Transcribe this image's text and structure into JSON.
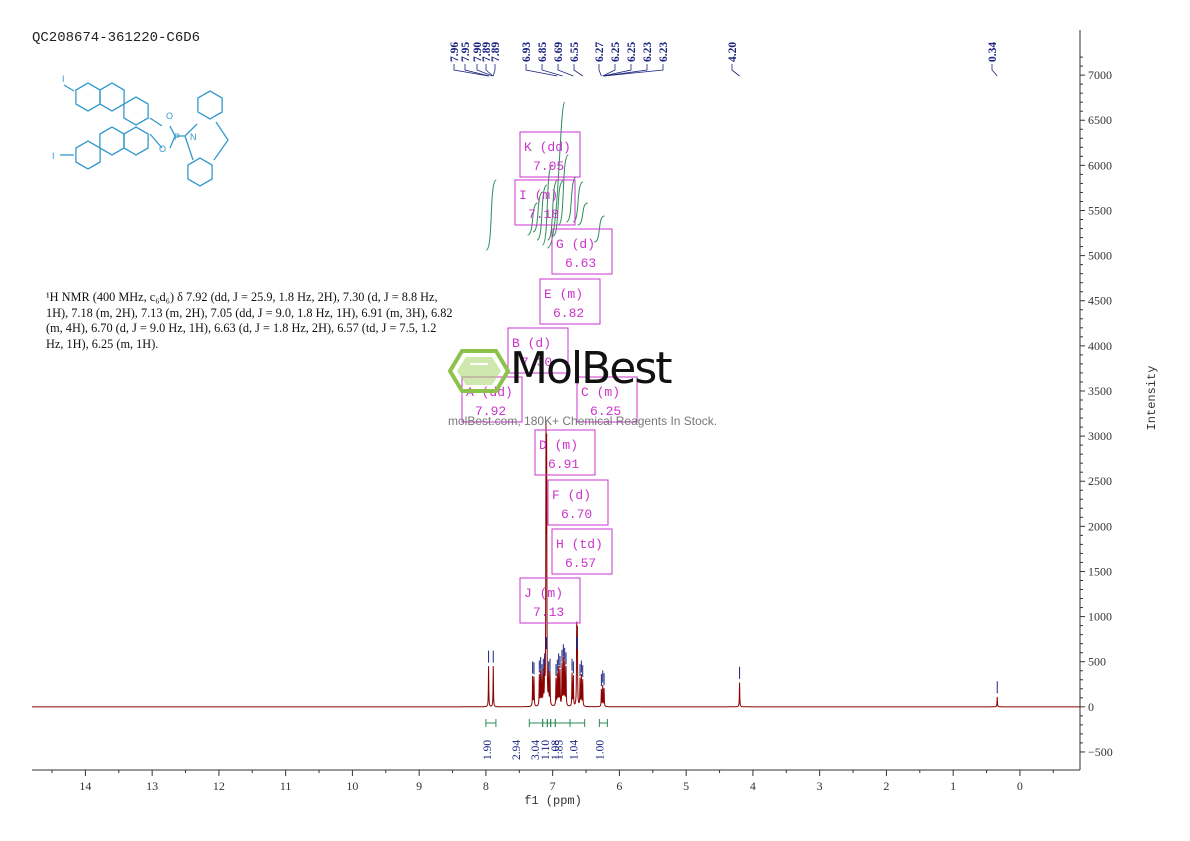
{
  "sample_id": "QC208674-361220-C6D6",
  "nmr_description": "¹H NMR (400 MHz, c₆d₆) δ 7.92 (dd, J = 25.9, 1.8 Hz, 2H), 7.30 (d, J = 8.8 Hz, 1H), 7.18 (m, 2H), 7.13 (m, 2H), 7.05 (dd, J = 9.0, 1.8 Hz, 1H), 6.91 (m, 3H), 6.82 (m, 4H), 6.70 (d, J = 9.0 Hz, 1H), 6.63 (d, J = 1.8 Hz, 2H), 6.57 (td, J = 7.5, 1.2 Hz, 1H), 6.25 (m, 1H).",
  "watermark": {
    "brand": "MolBest",
    "tagline": "molBest.com, 180K+ Chemical Reagents In Stock."
  },
  "colors": {
    "spectrum": "#8b0000",
    "peak_labels": "#1a237e",
    "integrals": "#2e8b57",
    "multiplet_boxes": "#cc33cc",
    "structure": "#3399cc",
    "axis": "#333333"
  },
  "chart_data": {
    "type": "line",
    "xlabel": "f1 (ppm)",
    "ylabel": "Intensity",
    "xlim": [
      14.8,
      -0.9
    ],
    "ylim": [
      -700,
      7500
    ],
    "x_ticks": [
      14,
      13,
      12,
      11,
      10,
      9,
      8,
      7,
      6,
      5,
      4,
      3,
      2,
      1,
      0
    ],
    "y_ticks": [
      -500,
      0,
      500,
      1000,
      1500,
      2000,
      2500,
      3000,
      3500,
      4000,
      4500,
      5000,
      5500,
      6000,
      6500,
      7000
    ],
    "peak_labels": [
      "7.96",
      "7.95",
      "7.90",
      "7.89",
      "7.89",
      "6.93",
      "6.85",
      "6.69",
      "6.55",
      "6.27",
      "6.25",
      "6.25",
      "6.23",
      "6.23",
      "4.20",
      "0.34"
    ],
    "peak_label_positions": [
      7.96,
      7.95,
      7.9,
      7.895,
      7.89,
      6.93,
      6.85,
      6.69,
      6.55,
      6.27,
      6.25,
      6.245,
      6.23,
      6.225,
      4.2,
      0.34
    ],
    "peaks": [
      {
        "x": 7.96,
        "y": 450
      },
      {
        "x": 7.89,
        "y": 450
      },
      {
        "x": 7.3,
        "y": 330
      },
      {
        "x": 7.28,
        "y": 320
      },
      {
        "x": 7.2,
        "y": 340
      },
      {
        "x": 7.18,
        "y": 380
      },
      {
        "x": 7.16,
        "y": 300
      },
      {
        "x": 7.14,
        "y": 360
      },
      {
        "x": 7.12,
        "y": 420
      },
      {
        "x": 7.1,
        "y": 2850
      },
      {
        "x": 7.09,
        "y": 2700
      },
      {
        "x": 7.06,
        "y": 330
      },
      {
        "x": 7.04,
        "y": 360
      },
      {
        "x": 6.95,
        "y": 300
      },
      {
        "x": 6.93,
        "y": 350
      },
      {
        "x": 6.91,
        "y": 420
      },
      {
        "x": 6.89,
        "y": 390
      },
      {
        "x": 6.86,
        "y": 460
      },
      {
        "x": 6.84,
        "y": 520
      },
      {
        "x": 6.82,
        "y": 480
      },
      {
        "x": 6.8,
        "y": 430
      },
      {
        "x": 6.71,
        "y": 360
      },
      {
        "x": 6.69,
        "y": 330
      },
      {
        "x": 6.64,
        "y": 850
      },
      {
        "x": 6.63,
        "y": 800
      },
      {
        "x": 6.59,
        "y": 300
      },
      {
        "x": 6.57,
        "y": 340
      },
      {
        "x": 6.55,
        "y": 290
      },
      {
        "x": 6.27,
        "y": 190
      },
      {
        "x": 6.25,
        "y": 230
      },
      {
        "x": 6.23,
        "y": 200
      },
      {
        "x": 4.2,
        "y": 270
      },
      {
        "x": 0.34,
        "y": 110
      }
    ],
    "integrals": [
      {
        "label": "1.90",
        "from": 8.0,
        "to": 7.85
      },
      {
        "label": "2.94",
        "from": 7.35,
        "to": 7.15
      },
      {
        "label": "3.04",
        "from": 7.15,
        "to": 7.08
      },
      {
        "label": "1.10",
        "from": 7.08,
        "to": 7.03
      },
      {
        "label": "1.08",
        "from": 7.03,
        "to": 6.96
      },
      {
        "label": "1.85",
        "from": 6.96,
        "to": 6.74
      },
      {
        "label": "1.04",
        "from": 6.74,
        "to": 6.52
      },
      {
        "label": "1.00",
        "from": 6.3,
        "to": 6.18
      }
    ],
    "multiplets": [
      {
        "letter": "K",
        "type": "dd",
        "shift": "7.05"
      },
      {
        "letter": "I",
        "type": "m",
        "shift": "7.18"
      },
      {
        "letter": "G",
        "type": "d",
        "shift": "6.63"
      },
      {
        "letter": "E",
        "type": "m",
        "shift": "6.82"
      },
      {
        "letter": "B",
        "type": "d",
        "shift": "7.30"
      },
      {
        "letter": "A",
        "type": "dd",
        "shift": "7.92"
      },
      {
        "letter": "C",
        "type": "m",
        "shift": "6.25"
      },
      {
        "letter": "D",
        "type": "m",
        "shift": "6.91"
      },
      {
        "letter": "F",
        "type": "d",
        "shift": "6.70"
      },
      {
        "letter": "H",
        "type": "td",
        "shift": "6.57"
      },
      {
        "letter": "J",
        "type": "m",
        "shift": "7.13"
      }
    ]
  }
}
